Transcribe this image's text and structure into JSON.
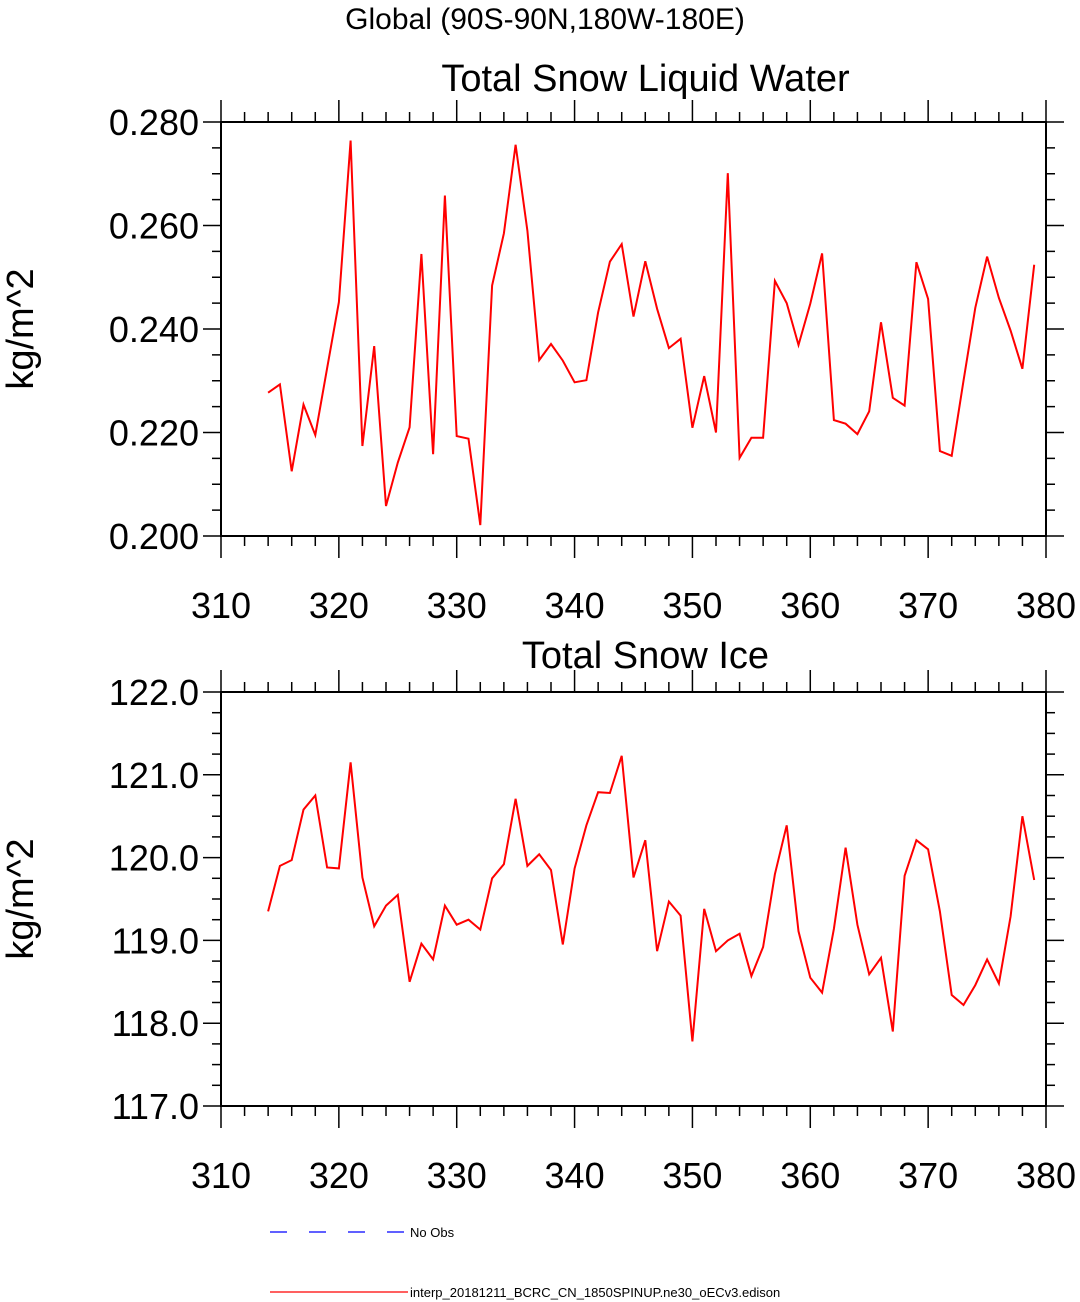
{
  "page_title": "Global (90S-90N,180W-180E)",
  "colors": {
    "series": "#ff0000",
    "obs": "#0000ff",
    "axis": "#000000"
  },
  "legend": {
    "placement": "bottom-left",
    "entries": [
      {
        "label": "No Obs",
        "color": "#0000ff",
        "dash": "dashed"
      },
      {
        "label": "interp_20181211_BCRC_CN_1850SPINUP.ne30_oECv3.edison",
        "color": "#ff0000",
        "dash": "solid"
      }
    ]
  },
  "chart_data": [
    {
      "type": "line",
      "title": "Total Snow Liquid Water",
      "ylabel": "kg/m^2",
      "xlabel": "",
      "xlim": [
        310,
        380
      ],
      "ylim": [
        0.2,
        0.28
      ],
      "xticks": [
        "310",
        "320",
        "330",
        "340",
        "350",
        "360",
        "370",
        "380"
      ],
      "yticks": [
        "0.200",
        "0.220",
        "0.240",
        "0.260",
        "0.280"
      ],
      "grid": false,
      "series": [
        {
          "color": "#ff0000",
          "x": [
            314,
            315,
            316,
            317,
            318,
            319,
            320,
            321,
            322,
            323,
            324,
            325,
            326,
            327,
            328,
            329,
            330,
            331,
            332,
            333,
            334,
            335,
            336,
            337,
            338,
            339,
            340,
            341,
            342,
            343,
            344,
            345,
            346,
            347,
            348,
            349,
            350,
            351,
            352,
            353,
            354,
            355,
            356,
            357,
            358,
            359,
            360,
            361,
            362,
            363,
            364,
            365,
            366,
            367,
            368,
            369,
            370,
            371,
            372,
            373,
            374,
            375,
            376,
            377,
            378,
            379
          ],
          "values": [
            0.2277,
            0.2293,
            0.2125,
            0.2254,
            0.2195,
            0.2324,
            0.2452,
            0.2764,
            0.2174,
            0.2367,
            0.2058,
            0.2142,
            0.221,
            0.2545,
            0.2158,
            0.2658,
            0.2193,
            0.2188,
            0.2021,
            0.2484,
            0.2585,
            0.2756,
            0.259,
            0.234,
            0.2371,
            0.2339,
            0.2297,
            0.2301,
            0.2432,
            0.253,
            0.2564,
            0.2424,
            0.2531,
            0.2439,
            0.2363,
            0.2381,
            0.2209,
            0.2309,
            0.22,
            0.2701,
            0.2151,
            0.219,
            0.219,
            0.2493,
            0.245,
            0.2369,
            0.2449,
            0.2546,
            0.2224,
            0.2217,
            0.2197,
            0.2241,
            0.2413,
            0.2267,
            0.2252,
            0.2529,
            0.2458,
            0.2164,
            0.2155,
            0.23,
            0.2441,
            0.254,
            0.246,
            0.2397,
            0.2323,
            0.2524
          ]
        }
      ]
    },
    {
      "type": "line",
      "title": "Total Snow Ice",
      "ylabel": "kg/m^2",
      "xlabel": "",
      "xlim": [
        310,
        380
      ],
      "ylim": [
        117,
        122
      ],
      "xticks": [
        "310",
        "320",
        "330",
        "340",
        "350",
        "360",
        "370",
        "380"
      ],
      "yticks": [
        "117.0",
        "118.0",
        "119.0",
        "120.0",
        "121.0",
        "122.0"
      ],
      "grid": false,
      "series": [
        {
          "color": "#ff0000",
          "x": [
            314,
            315,
            316,
            317,
            318,
            319,
            320,
            321,
            322,
            323,
            324,
            325,
            326,
            327,
            328,
            329,
            330,
            331,
            332,
            333,
            334,
            335,
            336,
            337,
            338,
            339,
            340,
            341,
            342,
            343,
            344,
            345,
            346,
            347,
            348,
            349,
            350,
            351,
            352,
            353,
            354,
            355,
            356,
            357,
            358,
            359,
            360,
            361,
            362,
            363,
            364,
            365,
            366,
            367,
            368,
            369,
            370,
            371,
            372,
            373,
            374,
            375,
            376,
            377,
            378,
            379
          ],
          "values": [
            119.35,
            119.9,
            119.97,
            120.58,
            120.75,
            119.88,
            119.87,
            121.15,
            119.76,
            119.17,
            119.42,
            119.55,
            118.5,
            118.96,
            118.77,
            119.42,
            119.19,
            119.25,
            119.13,
            119.75,
            119.92,
            120.71,
            119.9,
            120.04,
            119.85,
            118.95,
            119.87,
            120.39,
            120.79,
            120.78,
            121.23,
            119.76,
            120.21,
            118.87,
            119.47,
            119.3,
            117.78,
            119.38,
            118.87,
            119.0,
            119.08,
            118.57,
            118.92,
            119.8,
            120.39,
            119.11,
            118.55,
            118.37,
            119.14,
            120.12,
            119.19,
            118.59,
            118.79,
            117.9,
            119.78,
            120.21,
            120.1,
            119.35,
            118.34,
            118.22,
            118.46,
            118.77,
            118.48,
            119.29,
            120.5,
            119.73
          ]
        }
      ]
    }
  ]
}
